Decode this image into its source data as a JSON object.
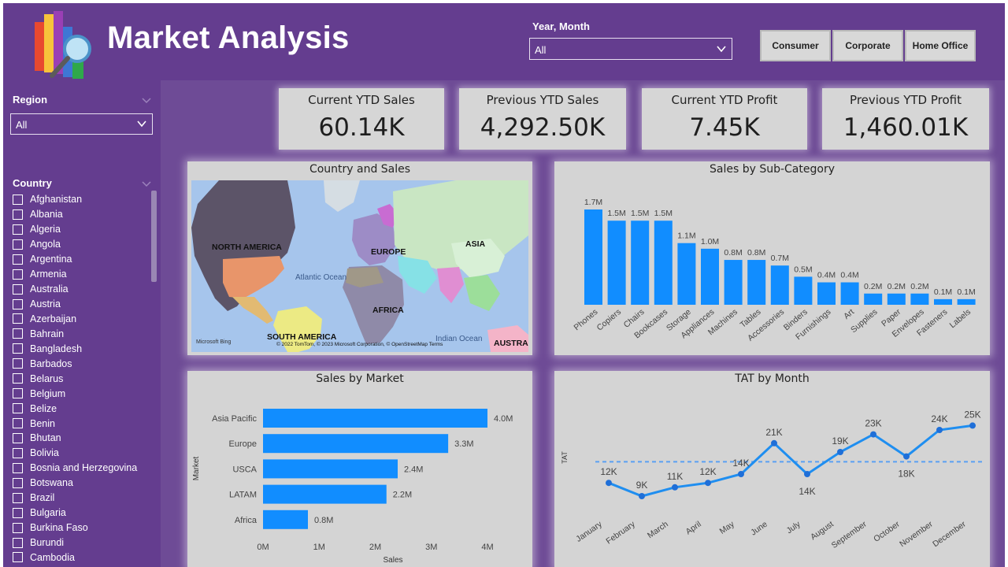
{
  "header": {
    "title": "Market Analysis",
    "year_month_label": "Year, Month",
    "year_month_value": "All",
    "segments": [
      "Consumer",
      "Corporate",
      "Home Office"
    ]
  },
  "sidebar": {
    "region_label": "Region",
    "region_value": "All",
    "country_label": "Country",
    "countries": [
      "Afghanistan",
      "Albania",
      "Algeria",
      "Angola",
      "Argentina",
      "Armenia",
      "Australia",
      "Austria",
      "Azerbaijan",
      "Bahrain",
      "Bangladesh",
      "Barbados",
      "Belarus",
      "Belgium",
      "Belize",
      "Benin",
      "Bhutan",
      "Bolivia",
      "Bosnia and Herzegovina",
      "Botswana",
      "Brazil",
      "Bulgaria",
      "Burkina Faso",
      "Burundi",
      "Cambodia"
    ]
  },
  "kpis": [
    {
      "label": "Current YTD Sales",
      "value": "60.14K"
    },
    {
      "label": "Previous YTD Sales",
      "value": "4,292.50K"
    },
    {
      "label": "Current YTD Profit",
      "value": "7.45K"
    },
    {
      "label": "Previous YTD Profit",
      "value": "1,460.01K"
    }
  ],
  "map": {
    "title": "Country and Sales",
    "labels": [
      "NORTH AMERICA",
      "EUROPE",
      "ASIA",
      "Atlantic Ocean",
      "AFRICA",
      "SOUTH AMERICA",
      "Indian Ocean",
      "AUSTRAL"
    ],
    "attribution": "© 2022 TomTom, © 2023 Microsoft Corporation, © OpenStreetMap Terms",
    "brand": "Microsoft Bing",
    "colors": {
      "ocean": "#a6c5ec",
      "land": "#c9e6c3"
    }
  },
  "chart_data": [
    {
      "type": "bar",
      "title": "Sales by Sub-Category",
      "categories": [
        "Phones",
        "Copiers",
        "Chairs",
        "Bookcases",
        "Storage",
        "Appliances",
        "Machines",
        "Tables",
        "Accessories",
        "Binders",
        "Furnishings",
        "Art",
        "Supplies",
        "Paper",
        "Envelopes",
        "Fasteners",
        "Labels"
      ],
      "values": [
        1.7,
        1.5,
        1.5,
        1.5,
        1.1,
        1.0,
        0.8,
        0.8,
        0.7,
        0.5,
        0.4,
        0.4,
        0.2,
        0.2,
        0.2,
        0.1,
        0.1
      ],
      "data_labels": [
        "1.7M",
        "1.5M",
        "1.5M",
        "1.5M",
        "1.1M",
        "1.0M",
        "0.8M",
        "0.8M",
        "0.7M",
        "0.5M",
        "0.4M",
        "0.4M",
        "0.2M",
        "0.2M",
        "0.2M",
        "0.1M",
        "0.1M"
      ],
      "color": "#118dff"
    },
    {
      "type": "bar",
      "orientation": "horizontal",
      "title": "Sales by Market",
      "categories": [
        "Asia Pacific",
        "Europe",
        "USCA",
        "LATAM",
        "Africa"
      ],
      "values": [
        4.0,
        3.3,
        2.4,
        2.2,
        0.8
      ],
      "data_labels": [
        "4.0M",
        "3.3M",
        "2.4M",
        "2.2M",
        "0.8M"
      ],
      "xlabel": "Sales",
      "ylabel": "Market",
      "xticks": [
        "0M",
        "1M",
        "2M",
        "3M",
        "4M"
      ],
      "xlim": [
        0,
        4.4
      ],
      "color": "#118dff"
    },
    {
      "type": "line",
      "title": "TAT by Month",
      "categories": [
        "January",
        "February",
        "March",
        "April",
        "May",
        "June",
        "July",
        "August",
        "September",
        "October",
        "November",
        "December"
      ],
      "values": [
        12,
        9,
        11,
        12,
        14,
        21,
        14,
        19,
        23,
        18,
        24,
        25
      ],
      "data_labels": [
        "12K",
        "9K",
        "11K",
        "12K",
        "14K",
        "21K",
        "14K",
        "19K",
        "23K",
        "18K",
        "24K",
        "25K"
      ],
      "ylabel": "TAT",
      "average_line": 16.8,
      "color": "#1f6fd8"
    }
  ]
}
